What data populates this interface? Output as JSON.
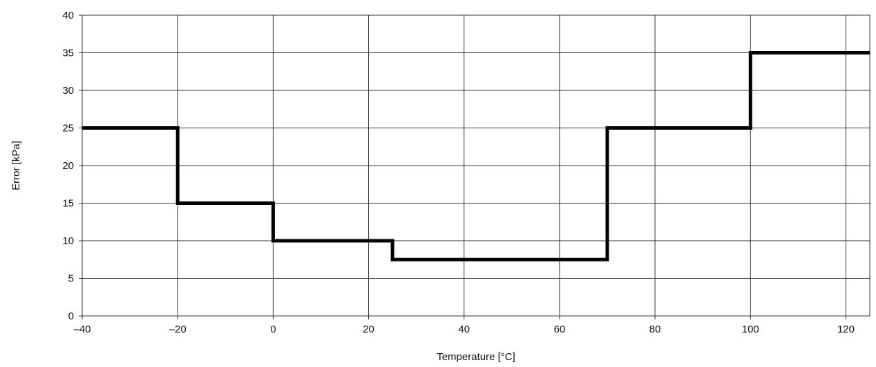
{
  "chart_data": {
    "type": "line",
    "step": true,
    "xlabel": "Temperature [°C]",
    "ylabel": "Error [kPa]",
    "xlim": [
      -40,
      125
    ],
    "ylim": [
      0,
      40
    ],
    "xticks": [
      -40,
      -20,
      0,
      20,
      40,
      60,
      80,
      100,
      120
    ],
    "xtick_labels": [
      "–40",
      "–20",
      "0",
      "20",
      "40",
      "60",
      "80",
      "100",
      "120"
    ],
    "yticks": [
      0,
      5,
      10,
      15,
      20,
      25,
      30,
      35,
      40
    ],
    "ytick_labels": [
      "0",
      "5",
      "10",
      "15",
      "20",
      "25",
      "30",
      "35",
      "40"
    ],
    "grid": true,
    "series": [
      {
        "color": "#000000",
        "x": [
          -40,
          -20,
          -20,
          0,
          0,
          25,
          25,
          70,
          70,
          100,
          100,
          125
        ],
        "y": [
          25,
          25,
          15,
          15,
          10,
          10,
          7.5,
          7.5,
          25,
          25,
          35,
          35
        ]
      }
    ]
  }
}
